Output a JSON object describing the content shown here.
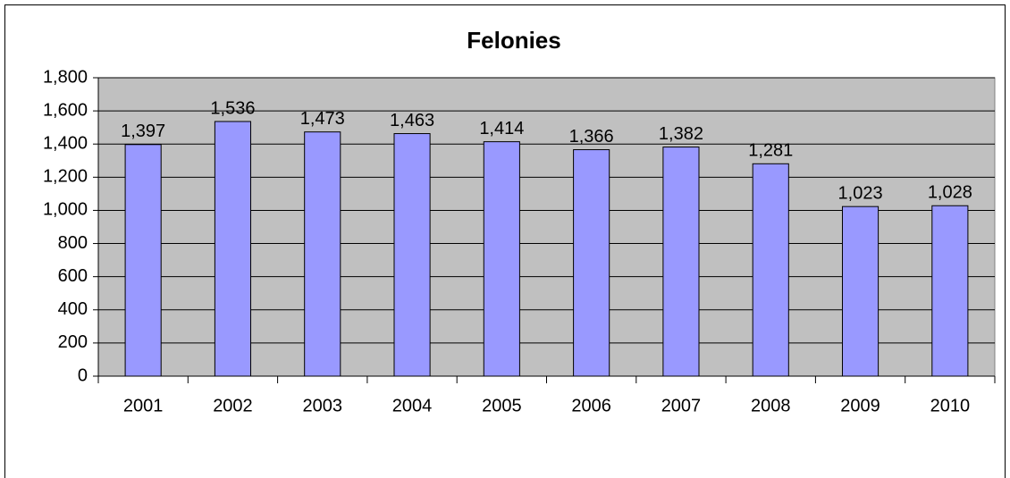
{
  "chart_data": {
    "type": "bar",
    "title": "Felonies",
    "categories": [
      "2001",
      "2002",
      "2003",
      "2004",
      "2005",
      "2006",
      "2007",
      "2008",
      "2009",
      "2010"
    ],
    "values": [
      1397,
      1536,
      1473,
      1463,
      1414,
      1366,
      1382,
      1281,
      1023,
      1028
    ],
    "value_labels": [
      "1,397",
      "1,536",
      "1,473",
      "1,463",
      "1,414",
      "1,366",
      "1,382",
      "1,281",
      "1,023",
      "1,028"
    ],
    "color": "#9999ff",
    "ylim": [
      0,
      1800
    ],
    "yticks": [
      0,
      200,
      400,
      600,
      800,
      {
        "value": 1000,
        "label": "1,000"
      },
      {
        "value": 1200,
        "label": "1,200"
      },
      {
        "value": 1400,
        "label": "1,400"
      },
      {
        "value": 1600,
        "label": "1,600"
      },
      {
        "value": 1800,
        "label": "1,800"
      }
    ],
    "grid": true
  }
}
